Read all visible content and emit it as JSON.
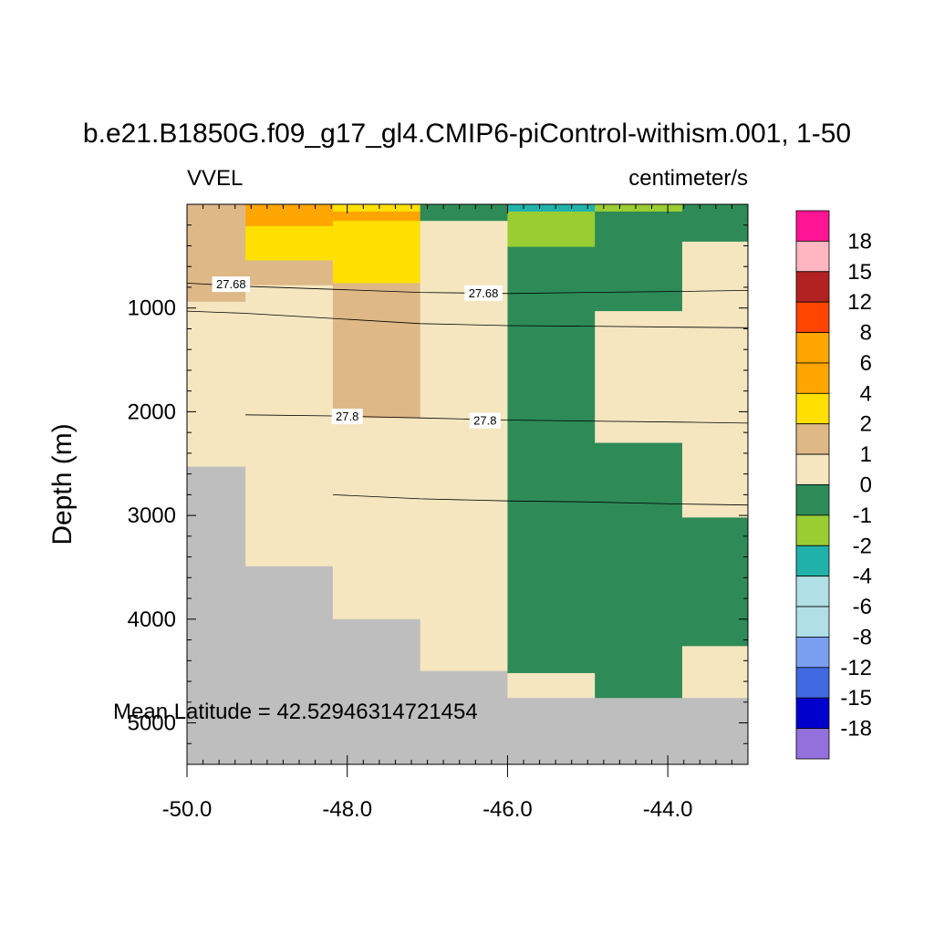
{
  "chart_data": {
    "type": "heatmap",
    "title": "b.e21.B1850G.f09_g17_gl4.CMIP6-piControl-withism.001, 1-50",
    "left_label": "VVEL",
    "right_label": "centimeter/s",
    "ylabel": "Depth (m)",
    "xlabel": "",
    "xlim": [
      -50.0,
      -43.0
    ],
    "ylim": [
      5400,
      0
    ],
    "y_reversed": true,
    "x_ticks": [
      "-50.0",
      "-48.0",
      "-46.0",
      "-44.0"
    ],
    "x_tick_values": [
      -50.0,
      -48.0,
      -46.0,
      -44.0
    ],
    "y_ticks": [
      "1000",
      "2000",
      "3000",
      "4000",
      "5000"
    ],
    "y_tick_values": [
      1000,
      2000,
      3000,
      4000,
      5000
    ],
    "annotation": "Mean Latitude = 42.52946314721454",
    "missing_color": "#bebebe",
    "colorbar": {
      "labels": [
        "18",
        "15",
        "12",
        "8",
        "6",
        "4",
        "2",
        "1",
        "0",
        "-1",
        "-2",
        "-4",
        "-6",
        "-8",
        "-12",
        "-15",
        "-18"
      ],
      "colors": [
        "#ff1493",
        "#ffb6c1",
        "#b22222",
        "#ff4500",
        "#ffa500",
        "#ffa500",
        "#ffe000",
        "#deb887",
        "#f5e6c0",
        "#2e8b57",
        "#9acd32",
        "#20b2aa",
        "#b0dfe5",
        "#b0dfe5",
        "#7b9ff0",
        "#4169e1",
        "#0000cd",
        "#9370db"
      ]
    },
    "columns_x": [
      [
        -50.0,
        -49.27
      ],
      [
        -49.27,
        -48.18
      ],
      [
        -48.18,
        -47.09
      ],
      [
        -47.09,
        -46.0
      ],
      [
        -46.0,
        -44.91
      ],
      [
        -44.91,
        -43.82
      ],
      [
        -43.82,
        -43.0
      ]
    ],
    "cells": [
      [
        [
          0,
          5400,
          1
        ]
      ],
      [
        [
          0,
          5400,
          1
        ]
      ],
      [
        [
          0,
          5400,
          1
        ]
      ],
      [
        [
          0,
          5400,
          1
        ]
      ],
      [
        [
          0,
          5400,
          1
        ]
      ],
      [
        [
          0,
          5400,
          1
        ]
      ],
      [
        [
          0,
          5400,
          1
        ]
      ]
    ],
    "cell_rects": [
      {
        "col": 0,
        "y0": 0,
        "y1": 520,
        "value_class": "1-2"
      },
      {
        "col": 0,
        "y0": 520,
        "y1": 940,
        "value_class": "1-2"
      },
      {
        "col": 0,
        "y0": 940,
        "y1": 2530,
        "value_class": "0-1"
      },
      {
        "col": 0,
        "y0": 2530,
        "y1": 5400,
        "value_class": "missing"
      },
      {
        "col": 1,
        "y0": 0,
        "y1": 210,
        "value_class": "4-6"
      },
      {
        "col": 1,
        "y0": 210,
        "y1": 540,
        "value_class": "2-4"
      },
      {
        "col": 1,
        "y0": 540,
        "y1": 780,
        "value_class": "1-2"
      },
      {
        "col": 1,
        "y0": 780,
        "y1": 3490,
        "value_class": "0-1"
      },
      {
        "col": 1,
        "y0": 3490,
        "y1": 5400,
        "value_class": "missing"
      },
      {
        "col": 2,
        "y0": 0,
        "y1": 70,
        "value_class": "2-4"
      },
      {
        "col": 2,
        "y0": 70,
        "y1": 160,
        "value_class": "4-6"
      },
      {
        "col": 2,
        "y0": 160,
        "y1": 760,
        "value_class": "2-4"
      },
      {
        "col": 2,
        "y0": 760,
        "y1": 2060,
        "value_class": "1-2"
      },
      {
        "col": 2,
        "y0": 2060,
        "y1": 4000,
        "value_class": "0-1"
      },
      {
        "col": 2,
        "y0": 4000,
        "y1": 5400,
        "value_class": "missing"
      },
      {
        "col": 3,
        "y0": 0,
        "y1": 160,
        "value_class": "-1-0"
      },
      {
        "col": 3,
        "y0": 160,
        "y1": 4500,
        "value_class": "0-1"
      },
      {
        "col": 3,
        "y0": 4500,
        "y1": 5400,
        "value_class": "missing"
      },
      {
        "col": 4,
        "y0": 0,
        "y1": 70,
        "value_class": "-4--2"
      },
      {
        "col": 4,
        "y0": 70,
        "y1": 410,
        "value_class": "-2--1"
      },
      {
        "col": 4,
        "y0": 410,
        "y1": 4520,
        "value_class": "-1-0"
      },
      {
        "col": 4,
        "y0": 4520,
        "y1": 4760,
        "value_class": "0-1"
      },
      {
        "col": 4,
        "y0": 4760,
        "y1": 5400,
        "value_class": "missing"
      },
      {
        "col": 5,
        "y0": 0,
        "y1": 70,
        "value_class": "-2--1"
      },
      {
        "col": 5,
        "y0": 70,
        "y1": 1030,
        "value_class": "-1-0"
      },
      {
        "col": 5,
        "y0": 1030,
        "y1": 2300,
        "value_class": "0-1"
      },
      {
        "col": 5,
        "y0": 2300,
        "y1": 4760,
        "value_class": "-1-0"
      },
      {
        "col": 5,
        "y0": 4760,
        "y1": 5400,
        "value_class": "missing"
      },
      {
        "col": 6,
        "y0": 0,
        "y1": 360,
        "value_class": "-1-0"
      },
      {
        "col": 6,
        "y0": 360,
        "y1": 3020,
        "value_class": "0-1"
      },
      {
        "col": 6,
        "y0": 3020,
        "y1": 4260,
        "value_class": "-1-0"
      },
      {
        "col": 6,
        "y0": 4260,
        "y1": 4760,
        "value_class": "0-1"
      },
      {
        "col": 6,
        "y0": 4760,
        "y1": 5400,
        "value_class": "missing"
      }
    ],
    "class_colors": {
      "4-6": "#ffa500",
      "2-4": "#ffe000",
      "1-2": "#deb887",
      "0-1": "#f5e6c0",
      "-1-0": "#2e8b57",
      "-2--1": "#9acd32",
      "-4--2": "#20b2aa",
      "missing": "#bebebe"
    },
    "contours": [
      {
        "label": "27.68",
        "points": [
          [
            -50.0,
            760
          ],
          [
            -49.3,
            790
          ],
          [
            -48.18,
            820
          ],
          [
            -47.09,
            850
          ],
          [
            -46.0,
            860
          ],
          [
            -45.0,
            850
          ],
          [
            -43.82,
            840
          ],
          [
            -43.0,
            830
          ]
        ],
        "label_positions": [
          [
            -49.45,
            775
          ],
          [
            -46.3,
            860
          ]
        ]
      },
      {
        "points": [
          [
            -50.0,
            1030
          ],
          [
            -49.3,
            1050
          ],
          [
            -48.18,
            1100
          ],
          [
            -47.09,
            1150
          ],
          [
            -46.0,
            1170
          ],
          [
            -45.0,
            1175
          ],
          [
            -43.82,
            1185
          ],
          [
            -43.0,
            1190
          ]
        ],
        "label_positions": []
      },
      {
        "label": "27.8",
        "points": [
          [
            -49.27,
            2030
          ],
          [
            -48.18,
            2040
          ],
          [
            -47.09,
            2060
          ],
          [
            -46.0,
            2080
          ],
          [
            -45.0,
            2090
          ],
          [
            -43.82,
            2100
          ],
          [
            -43.0,
            2110
          ]
        ],
        "label_positions": [
          [
            -48.0,
            2050
          ],
          [
            -46.28,
            2090
          ]
        ]
      },
      {
        "points": [
          [
            -48.18,
            2800
          ],
          [
            -47.09,
            2840
          ],
          [
            -46.0,
            2860
          ],
          [
            -45.0,
            2870
          ],
          [
            -43.82,
            2890
          ],
          [
            -43.0,
            2900
          ]
        ],
        "label_positions": []
      }
    ]
  }
}
